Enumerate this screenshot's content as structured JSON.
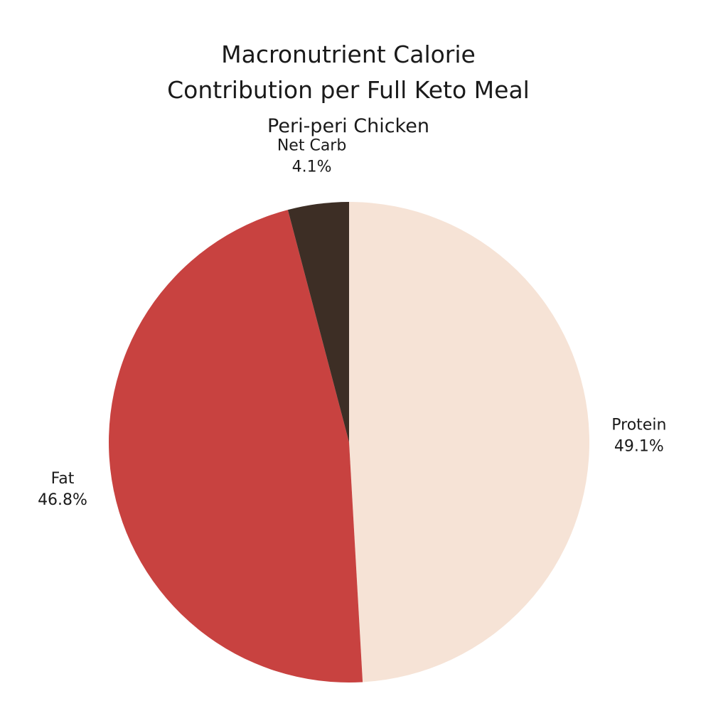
{
  "chart_data": {
    "type": "pie",
    "title": [
      "Macronutrient Calorie",
      "Contribution per Full Keto Meal"
    ],
    "subtitle": "Peri-peri Chicken",
    "slices": [
      {
        "name": "Protein",
        "value": 49.1,
        "label": "49.1%",
        "color": "#f6e3d6"
      },
      {
        "name": "Fat",
        "value": 46.8,
        "label": "46.8%",
        "color": "#c84240"
      },
      {
        "name": "Net Carb",
        "value": 4.1,
        "label": "4.1%",
        "color": "#3d2e25"
      }
    ],
    "start_angle": "12 o'clock",
    "direction": "clockwise"
  }
}
